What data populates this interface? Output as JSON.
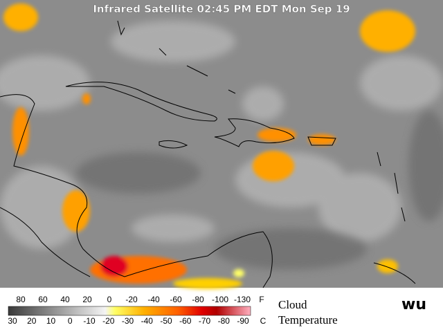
{
  "title": "Infrared Satellite 02:45 PM EDT Mon Sep 19",
  "legend": {
    "fahrenheit": {
      "labels": [
        "80",
        "60",
        "40",
        "20",
        "0",
        "-20",
        "-40",
        "-60",
        "-80",
        "-100",
        "-130"
      ],
      "unit": "F"
    },
    "celsius": {
      "labels": [
        "30",
        "20",
        "10",
        "0",
        "-10",
        "-20",
        "-30",
        "-40",
        "-50",
        "-60",
        "-70",
        "-80",
        "-90"
      ],
      "unit": "C"
    },
    "caption": [
      "Cloud",
      "Temperature"
    ]
  },
  "logo": "wu"
}
